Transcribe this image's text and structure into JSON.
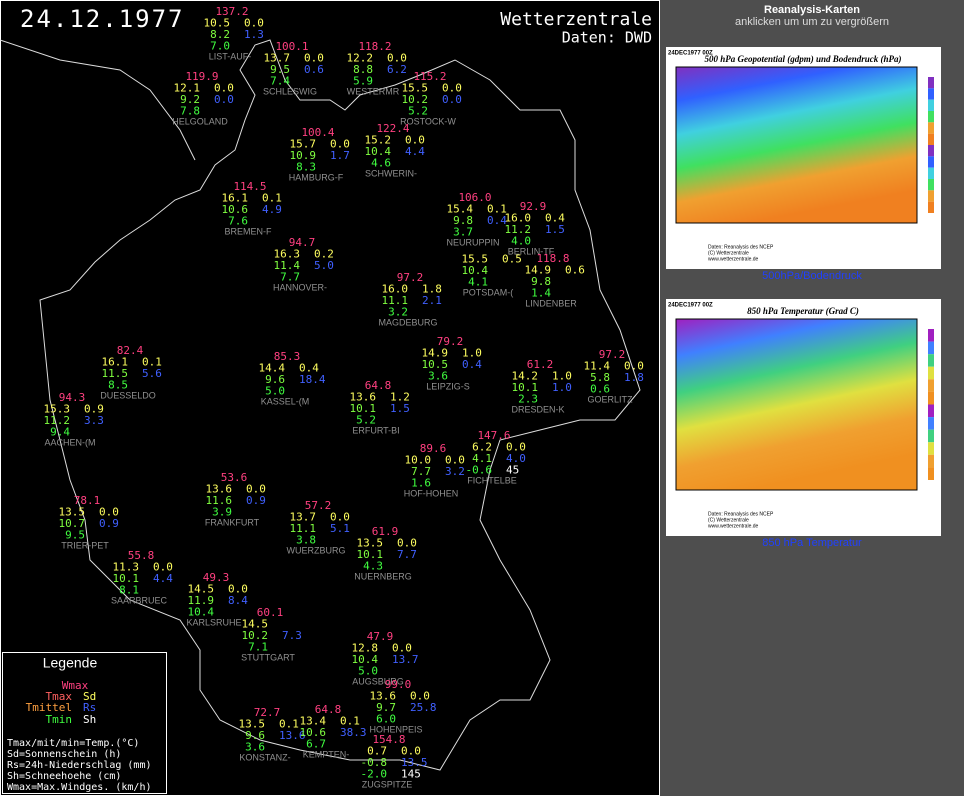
{
  "header": {
    "date": "24.12.1977",
    "brand": "Wetterzentrale",
    "source": "Daten: DWD"
  },
  "stations": [
    {
      "name": "LIST-AUF-",
      "wmax": "137.2",
      "tmax": "10.5",
      "sd": "0.0",
      "tmittel": "8.2",
      "rs": "1.3",
      "tmin": "7.0",
      "sh": null
    },
    {
      "name": "SCHLESWIG",
      "wmax": "100.1",
      "tmax": "13.7",
      "sd": "0.0",
      "tmittel": "9.5",
      "rs": "0.6",
      "tmin": "7.4",
      "sh": null
    },
    {
      "name": "WESTERMR",
      "wmax": "118.2",
      "tmax": "12.2",
      "sd": "0.0",
      "tmittel": "8.8",
      "rs": "6.2",
      "tmin": "5.9",
      "sh": null
    },
    {
      "name": "HELGOLAND",
      "wmax": "119.9",
      "tmax": "12.1",
      "sd": "0.0",
      "tmittel": "9.2",
      "rs": "0.0",
      "tmin": "7.8",
      "sh": null
    },
    {
      "name": "ROSTOCK-W",
      "wmax": "115.2",
      "tmax": "15.5",
      "sd": "0.0",
      "tmittel": "10.2",
      "rs": "0.0",
      "tmin": "5.2",
      "sh": null
    },
    {
      "name": "HAMBURG-F",
      "wmax": "100.4",
      "tmax": "15.7",
      "sd": "0.0",
      "tmittel": "10.9",
      "rs": "1.7",
      "tmin": "8.3",
      "sh": null
    },
    {
      "name": "SCHWERIN-",
      "wmax": "122.4",
      "tmax": "15.2",
      "sd": "0.0",
      "tmittel": "10.4",
      "rs": "4.4",
      "tmin": "4.6",
      "sh": null
    },
    {
      "name": "BREMEN-F",
      "wmax": "114.5",
      "tmax": "16.1",
      "sd": "0.1",
      "tmittel": "10.6",
      "rs": "4.9",
      "tmin": "7.6",
      "sh": null
    },
    {
      "name": "NEURUPPIN",
      "wmax": "106.0",
      "tmax": "15.4",
      "sd": "0.1",
      "tmittel": "9.8",
      "rs": "0.4",
      "tmin": "3.7",
      "sh": null
    },
    {
      "name": "BERLIN-TF",
      "wmax": "92.9",
      "tmax": "16.0",
      "sd": "0.4",
      "tmittel": "11.2",
      "rs": "1.5",
      "tmin": "4.0",
      "sh": null
    },
    {
      "name": "POTSDAM-(",
      "wmax": null,
      "tmax": "15.5",
      "sd": "0.5",
      "tmittel": "10.4",
      "rs": null,
      "tmin": "4.1",
      "sh": null
    },
    {
      "name": "LINDENBER",
      "wmax": "118.8",
      "tmax": "14.9",
      "sd": "0.6",
      "tmittel": "9.8",
      "rs": null,
      "tmin": "1.4",
      "sh": null
    },
    {
      "name": "HANNOVER-",
      "wmax": "94.7",
      "tmax": "16.3",
      "sd": "0.2",
      "tmittel": "11.4",
      "rs": "5.0",
      "tmin": "7.7",
      "sh": null
    },
    {
      "name": "MAGDEBURG",
      "wmax": "97.2",
      "tmax": "16.0",
      "sd": "1.8",
      "tmittel": "11.1",
      "rs": "2.1",
      "tmin": "3.2",
      "sh": null
    },
    {
      "name": "DUESSELDO",
      "wmax": "82.4",
      "tmax": "16.1",
      "sd": "0.1",
      "tmittel": "11.5",
      "rs": "5.6",
      "tmin": "8.5",
      "sh": null
    },
    {
      "name": "KASSEL-(M",
      "wmax": "85.3",
      "tmax": "14.4",
      "sd": "0.4",
      "tmittel": "9.6",
      "rs": "18.4",
      "tmin": "5.0",
      "sh": null
    },
    {
      "name": "LEIPZIG-S",
      "wmax": "79.2",
      "tmax": "14.9",
      "sd": "1.0",
      "tmittel": "10.5",
      "rs": "0.4",
      "tmin": "3.6",
      "sh": null
    },
    {
      "name": "DRESDEN-K",
      "wmax": "61.2",
      "tmax": "14.2",
      "sd": "1.0",
      "tmittel": "10.1",
      "rs": "1.0",
      "tmin": "2.3",
      "sh": null
    },
    {
      "name": "GOERLITZ",
      "wmax": "97.2",
      "tmax": "11.4",
      "sd": "0.0",
      "tmittel": "5.8",
      "rs": "1.8",
      "tmin": "0.6",
      "sh": null
    },
    {
      "name": "AACHEN-(M",
      "wmax": "94.3",
      "tmax": "15.3",
      "sd": "0.9",
      "tmittel": "11.2",
      "rs": "3.3",
      "tmin": "9.4",
      "sh": null
    },
    {
      "name": "ERFURT-BI",
      "wmax": "64.8",
      "tmax": "13.6",
      "sd": "1.2",
      "tmittel": "10.1",
      "rs": "1.5",
      "tmin": "5.2",
      "sh": null
    },
    {
      "name": "HOF-HOHEN",
      "wmax": "89.6",
      "tmax": "10.0",
      "sd": "0.0",
      "tmittel": "7.7",
      "rs": "3.2",
      "tmin": "1.6",
      "sh": null
    },
    {
      "name": "FICHTELBE",
      "wmax": "147.6",
      "tmax": "6.2",
      "sd": "0.0",
      "tmittel": "4.1",
      "rs": "4.0",
      "tmin": "-0.6",
      "sh": "45"
    },
    {
      "name": "TRIER-PET",
      "wmax": "78.1",
      "tmax": "13.5",
      "sd": "0.0",
      "tmittel": "10.7",
      "rs": "0.9",
      "tmin": "9.5",
      "sh": null
    },
    {
      "name": "FRANKFURT",
      "wmax": "53.6",
      "tmax": "13.6",
      "sd": "0.0",
      "tmittel": "11.6",
      "rs": "0.9",
      "tmin": "3.9",
      "sh": null
    },
    {
      "name": "WUERZBURG",
      "wmax": "57.2",
      "tmax": "13.7",
      "sd": "0.0",
      "tmittel": "11.1",
      "rs": "5.1",
      "tmin": "3.8",
      "sh": null
    },
    {
      "name": "NUERNBERG",
      "wmax": "61.9",
      "tmax": "13.5",
      "sd": "0.0",
      "tmittel": "10.1",
      "rs": "7.7",
      "tmin": "4.3",
      "sh": null
    },
    {
      "name": "SAARBRUEC",
      "wmax": "55.8",
      "tmax": "11.3",
      "sd": "0.0",
      "tmittel": "10.1",
      "rs": "4.4",
      "tmin": "8.1",
      "sh": null
    },
    {
      "name": "KARLSRUHE",
      "wmax": "49.3",
      "tmax": "14.5",
      "sd": "0.0",
      "tmittel": "11.9",
      "rs": "8.4",
      "tmin": "10.4",
      "sh": null
    },
    {
      "name": "STUTTGART",
      "wmax": "60.1",
      "tmax": "14.5",
      "sd": null,
      "tmittel": "10.2",
      "rs": "7.3",
      "tmin": "7.1",
      "sh": null
    },
    {
      "name": "AUGSBURG",
      "wmax": "47.9",
      "tmax": "12.8",
      "sd": "0.0",
      "tmittel": "10.4",
      "rs": "13.7",
      "tmin": "5.0",
      "sh": null
    },
    {
      "name": "HOHENPEIS",
      "wmax": "99.0",
      "tmax": "13.6",
      "sd": "0.0",
      "tmittel": "9.7",
      "rs": "25.8",
      "tmin": "6.0",
      "sh": null
    },
    {
      "name": "KONSTANZ-",
      "wmax": "72.7",
      "tmax": "13.5",
      "sd": "0.1",
      "tmittel": "9.6",
      "rs": "13.6",
      "tmin": "3.6",
      "sh": null
    },
    {
      "name": "KEMPTEN-",
      "wmax": "64.8",
      "tmax": "13.4",
      "sd": "0.1",
      "tmittel": "10.6",
      "rs": "38.3",
      "tmin": "6.7",
      "sh": null
    },
    {
      "name": "ZUGSPITZE",
      "wmax": "154.8",
      "tmax": "0.7",
      "sd": "0.0",
      "tmittel": "-0.8",
      "rs": "13.5",
      "tmin": "-2.0",
      "sh": "145"
    }
  ],
  "legend": {
    "title": "Legende",
    "wmax": "Wmax",
    "tmax": "Tmax",
    "sd": "Sd",
    "tmittel": "Tmittel",
    "rs": "Rs",
    "tmin": "Tmin",
    "sh": "Sh",
    "notes": [
      "Tmax/mit/min=Temp.(°C)",
      "Sd=Sonnenschein (h)",
      "Rs=24h-Niederschlag (mm)",
      "Sh=Schneehoehe (cm)",
      "Wmax=Max.Windges. (km/h)"
    ]
  },
  "sidebar": {
    "title": "Reanalysis-Karten",
    "subtitle": "anklicken um um zu vergrößern",
    "maps": [
      {
        "stamp": "24DEC1977 00Z",
        "title": "500 hPa Geopotential (gdpm) und Bodendruck (hPa)",
        "credits": [
          "Daten: Reanalysis des NCEP",
          "(C) Wetterzentrale",
          "www.wetterzentrale.de"
        ],
        "link": "500hPa/Bodendruck"
      },
      {
        "stamp": "24DEC1977 00Z",
        "title": "850 hPa Temperatur (Grad C)",
        "credits": [
          "Daten: Reanalysis des NCEP",
          "(C) Wetterzentrale",
          "www.wetterzentrale.de"
        ],
        "link": "850 hPa Temperatur"
      }
    ]
  }
}
